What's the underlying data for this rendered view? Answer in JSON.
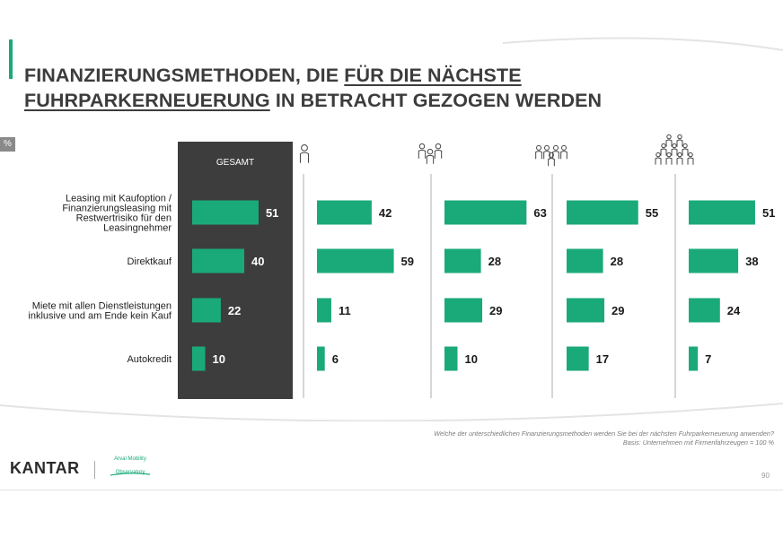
{
  "title": {
    "part1": "FINANZIERUNGSMETHODEN, DIE ",
    "part2_underlined": "FÜR DIE NÄCHSTE",
    "part3_underlined": "FUHRPARKERNEUERUNG",
    "part4": " IN BETRACHT GEZOGEN WERDEN"
  },
  "unit_label": "%",
  "chart_data": {
    "type": "bar",
    "orientation": "horizontal",
    "categories": [
      [
        "Leasing mit Kaufoption /",
        "Finanzierungsleasing mit",
        "Restwertrisiko für den",
        "Leasingnehmer"
      ],
      [
        "Direktkauf"
      ],
      [
        "Miete mit allen Dienstleistungen",
        "inklusive und am Ende kein Kauf"
      ],
      [
        "Autokredit"
      ]
    ],
    "series": [
      {
        "name": "GESAMT",
        "values": [
          51,
          40,
          22,
          10
        ],
        "icon": "total-header"
      },
      {
        "name": "company-size-1",
        "values": [
          42,
          59,
          11,
          6
        ],
        "icon": "one-person-icon"
      },
      {
        "name": "company-size-2",
        "values": [
          63,
          28,
          29,
          10
        ],
        "icon": "three-people-icon"
      },
      {
        "name": "company-size-3",
        "values": [
          55,
          28,
          29,
          17
        ],
        "icon": "five-people-icon"
      },
      {
        "name": "company-size-4",
        "values": [
          51,
          38,
          24,
          7
        ],
        "icon": "nine-people-icon"
      }
    ],
    "xlim": [
      0,
      100
    ],
    "bar_color": "#1aaa7a",
    "highlight_panel_color": "#3d3d3d"
  },
  "footer": {
    "question": "Welche der unterschiedlichen Finanzierungsmethoden werden Sie bei der nächsten Fuhrparkerneuerung anwenden?",
    "basis": "Basis: Unternehmen mit Firmenfahrzeugen = 100 %",
    "brand": "KANTAR",
    "partner_logo_line1": "Arval Mobility",
    "partner_logo_line2": "Observatory",
    "page_number": "90"
  },
  "colors": {
    "accent": "#1aaa7a",
    "title": "#3c3c3c",
    "panel": "#3d3d3d"
  }
}
